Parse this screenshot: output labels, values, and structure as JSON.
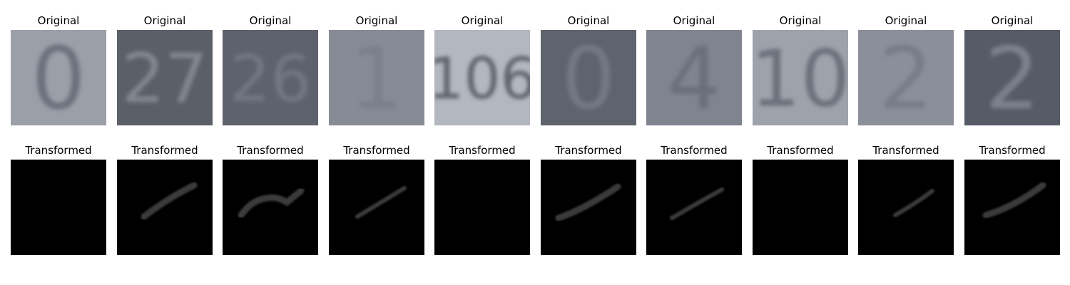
{
  "labels": {
    "original": "Original",
    "transformed": "Transformed"
  },
  "originals": [
    {
      "digits": "0",
      "bg": "#9a9fa8",
      "ink": "#6c717c"
    },
    {
      "digits": "27",
      "bg": "#5b5f68",
      "ink": "#83878f"
    },
    {
      "digits": "26",
      "bg": "#5e626d",
      "ink": "#737782"
    },
    {
      "digits": "1",
      "bg": "#878b96",
      "ink": "#7c808b"
    },
    {
      "digits": "106",
      "bg": "#b3b7bf",
      "ink": "#5e636d"
    },
    {
      "digits": "0",
      "bg": "#5f636d",
      "ink": "#737884"
    },
    {
      "digits": "4",
      "bg": "#80848f",
      "ink": "#6b6f79"
    },
    {
      "digits": "10",
      "bg": "#9ea3ab",
      "ink": "#6c717b"
    },
    {
      "digits": "2",
      "bg": "#8b8f99",
      "ink": "#797d87"
    },
    {
      "digits": "2",
      "bg": "#575b66",
      "ink": "#7d818c"
    }
  ],
  "transformed_colors": {
    "bg": "#000000",
    "stroke": "#3a3a3a"
  }
}
